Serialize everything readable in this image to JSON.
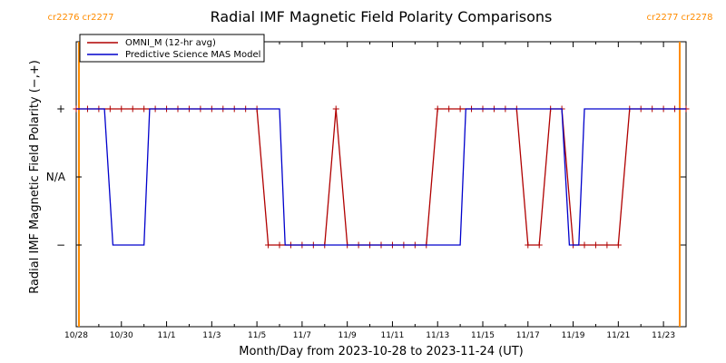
{
  "chart_data": {
    "type": "line",
    "title": "Radial IMF Magnetic Field Polarity Comparisons",
    "xlabel": "Month/Day from 2023-10-28 to 2023-11-24 (UT)",
    "ylabel": "Radial IMF Magnetic Field Polarity (−,+)",
    "xlim": [
      "2023-10-28T00:00",
      "2023-11-24T00:00"
    ],
    "x_tick_labels": [
      "10/28",
      "10/30",
      "11/1",
      "11/3",
      "11/5",
      "11/7",
      "11/9",
      "11/11",
      "11/13",
      "11/15",
      "11/17",
      "11/19",
      "11/21",
      "11/23"
    ],
    "y_categories": [
      "−",
      "N/A",
      "+"
    ],
    "y_tick_labels": [
      "+",
      "N/A",
      "−"
    ],
    "carrington_markers": [
      {
        "date": "2023-10-28T12:00",
        "labels": [
          "cr2276",
          "cr2277"
        ],
        "color": "#ff8c00",
        "side": "left"
      },
      {
        "date": "2023-11-24T00:00",
        "labels": [
          "cr2277",
          "cr2278"
        ],
        "color": "#ff8c00",
        "side": "right"
      }
    ],
    "series": [
      {
        "name": "OMNI_M (12-hr avg)",
        "color": "#b00000",
        "markers": true,
        "points": [
          [
            "2023-10-28T00:00",
            "+"
          ],
          [
            "2023-10-28T12:00",
            "+"
          ],
          [
            "2023-10-29T00:00",
            "+"
          ],
          [
            "2023-10-29T12:00",
            "+"
          ],
          [
            "2023-10-30T00:00",
            "+"
          ],
          [
            "2023-10-30T12:00",
            "+"
          ],
          [
            "2023-10-31T00:00",
            "+"
          ],
          [
            "2023-10-31T12:00",
            "+"
          ],
          [
            "2023-11-01T00:00",
            "+"
          ],
          [
            "2023-11-01T12:00",
            "+"
          ],
          [
            "2023-11-02T00:00",
            "+"
          ],
          [
            "2023-11-02T12:00",
            "+"
          ],
          [
            "2023-11-03T00:00",
            "+"
          ],
          [
            "2023-11-03T12:00",
            "+"
          ],
          [
            "2023-11-04T00:00",
            "+"
          ],
          [
            "2023-11-04T12:00",
            "+"
          ],
          [
            "2023-11-05T00:00",
            "+"
          ],
          [
            "2023-11-05T12:00",
            "−"
          ],
          [
            "2023-11-06T00:00",
            "−"
          ],
          [
            "2023-11-06T12:00",
            "−"
          ],
          [
            "2023-11-07T00:00",
            "−"
          ],
          [
            "2023-11-07T12:00",
            "−"
          ],
          [
            "2023-11-08T00:00",
            "−"
          ],
          [
            "2023-11-08T12:00",
            "+"
          ],
          [
            "2023-11-09T00:00",
            "−"
          ],
          [
            "2023-11-09T12:00",
            "−"
          ],
          [
            "2023-11-10T00:00",
            "−"
          ],
          [
            "2023-11-10T12:00",
            "−"
          ],
          [
            "2023-11-11T00:00",
            "−"
          ],
          [
            "2023-11-11T12:00",
            "−"
          ],
          [
            "2023-11-12T00:00",
            "−"
          ],
          [
            "2023-11-12T12:00",
            "−"
          ],
          [
            "2023-11-13T00:00",
            "+"
          ],
          [
            "2023-11-13T12:00",
            "+"
          ],
          [
            "2023-11-14T00:00",
            "+"
          ],
          [
            "2023-11-14T12:00",
            "+"
          ],
          [
            "2023-11-15T00:00",
            "+"
          ],
          [
            "2023-11-15T12:00",
            "+"
          ],
          [
            "2023-11-16T00:00",
            "+"
          ],
          [
            "2023-11-16T12:00",
            "+"
          ],
          [
            "2023-11-17T00:00",
            "−"
          ],
          [
            "2023-11-17T12:00",
            "−"
          ],
          [
            "2023-11-18T00:00",
            "+"
          ],
          [
            "2023-11-18T12:00",
            "+"
          ],
          [
            "2023-11-19T00:00",
            "−"
          ],
          [
            "2023-11-19T12:00",
            "−"
          ],
          [
            "2023-11-20T00:00",
            "−"
          ],
          [
            "2023-11-20T12:00",
            "−"
          ],
          [
            "2023-11-21T00:00",
            "−"
          ],
          [
            "2023-11-21T12:00",
            "+"
          ],
          [
            "2023-11-22T00:00",
            "+"
          ],
          [
            "2023-11-22T12:00",
            "+"
          ],
          [
            "2023-11-23T00:00",
            "+"
          ],
          [
            "2023-11-23T12:00",
            "+"
          ],
          [
            "2023-11-24T00:00",
            "+"
          ]
        ]
      },
      {
        "name": "Predictive Science MAS Model",
        "color": "#0000cc",
        "markers": false,
        "points": [
          [
            "2023-10-28T00:00",
            "+"
          ],
          [
            "2023-10-29T06:00",
            "+"
          ],
          [
            "2023-10-29T15:00",
            "−"
          ],
          [
            "2023-10-31T00:00",
            "−"
          ],
          [
            "2023-10-31T06:00",
            "+"
          ],
          [
            "2023-11-06T00:00",
            "+"
          ],
          [
            "2023-11-06T06:00",
            "−"
          ],
          [
            "2023-11-14T00:00",
            "−"
          ],
          [
            "2023-11-14T06:00",
            "+"
          ],
          [
            "2023-11-18T12:00",
            "+"
          ],
          [
            "2023-11-18T20:00",
            "−"
          ],
          [
            "2023-11-19T06:00",
            "−"
          ],
          [
            "2023-11-19T12:00",
            "+"
          ],
          [
            "2023-11-24T00:00",
            "+"
          ]
        ]
      }
    ],
    "legend_position": "top-left",
    "grid": false
  }
}
